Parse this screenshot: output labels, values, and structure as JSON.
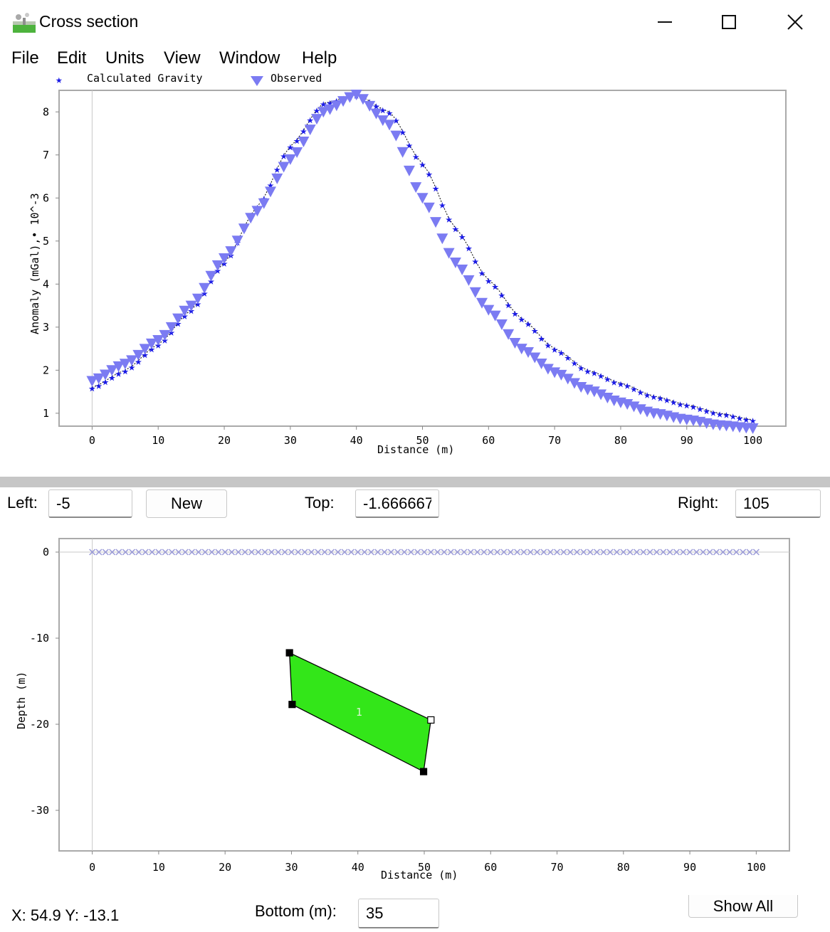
{
  "window": {
    "title": "Cross section",
    "minimize_icon": "minimize-icon",
    "maximize_icon": "maximize-icon",
    "close_icon": "close-icon"
  },
  "menu": [
    "File",
    "Edit",
    "Units",
    "View",
    "Window",
    "Help"
  ],
  "profile_chart": {
    "chart_data": {
      "type": "scatter",
      "xlabel": "Distance (m)",
      "ylabel": "Anomaly (mGal),• 10^-3",
      "xlim": [
        -5,
        105
      ],
      "ylim": [
        0.7,
        8.5
      ],
      "xticks": [
        "0",
        "10",
        "20",
        "30",
        "40",
        "50",
        "60",
        "70",
        "80",
        "90",
        "100"
      ],
      "yticks": [
        "1",
        "2",
        "3",
        "4",
        "5",
        "6",
        "7",
        "8"
      ],
      "legend_position": "top-left",
      "series": [
        {
          "name": "Calculated Gravity",
          "marker": "star",
          "color": "#1a1ae6",
          "x": [
            0,
            5,
            10,
            15,
            20,
            25,
            30,
            35,
            40,
            45,
            50,
            55,
            60,
            65,
            70,
            75,
            80,
            85,
            90,
            95,
            100
          ],
          "y": [
            1.6,
            2.0,
            2.6,
            3.4,
            4.5,
            5.8,
            7.2,
            8.2,
            8.4,
            8.0,
            6.8,
            5.3,
            4.1,
            3.2,
            2.5,
            2.0,
            1.7,
            1.4,
            1.2,
            1.0,
            0.85
          ]
        },
        {
          "name": "Observed",
          "marker": "triangle-down",
          "color": "#7b7bf2",
          "x": [
            0,
            5,
            10,
            15,
            20,
            25,
            30,
            35,
            40,
            45,
            50,
            55,
            60,
            65,
            70,
            75,
            80,
            85,
            90,
            95,
            100
          ],
          "y": [
            1.75,
            2.15,
            2.7,
            3.5,
            4.6,
            5.7,
            6.9,
            8.0,
            8.4,
            7.7,
            6.0,
            4.5,
            3.4,
            2.5,
            1.95,
            1.55,
            1.25,
            1.0,
            0.85,
            0.72,
            0.65
          ]
        }
      ]
    }
  },
  "controls": {
    "left_label": "Left:",
    "left_value": "-5",
    "new_button": "New",
    "top_label": "Top:",
    "top_value": "-1.666667",
    "right_label": "Right:",
    "right_value": "105",
    "bottom_label": "Bottom (m):",
    "bottom_value": "35",
    "show_all_button": "Show All"
  },
  "section_chart": {
    "chart_data": {
      "type": "scatter",
      "xlabel": "Distance (m)",
      "ylabel": "Depth (m)",
      "xlim": [
        -5,
        105
      ],
      "ylim": [
        -35,
        0
      ],
      "xticks": [
        "0",
        "10",
        "20",
        "30",
        "40",
        "50",
        "60",
        "70",
        "80",
        "90",
        "100"
      ],
      "yticks": [
        "0",
        "-10",
        "-20",
        "-30"
      ],
      "stations": {
        "x_start": 0,
        "x_end": 100,
        "step": 1,
        "depth": 0,
        "color": "#9a9ad8"
      },
      "polygon": {
        "label": "1",
        "fill": "#33e619",
        "vertices": [
          [
            29.7,
            -11.7
          ],
          [
            30.1,
            -17.7
          ],
          [
            49.9,
            -25.5
          ],
          [
            51.0,
            -19.5
          ]
        ]
      }
    }
  },
  "status": {
    "coords": "X: 54.9 Y: -13.1"
  }
}
